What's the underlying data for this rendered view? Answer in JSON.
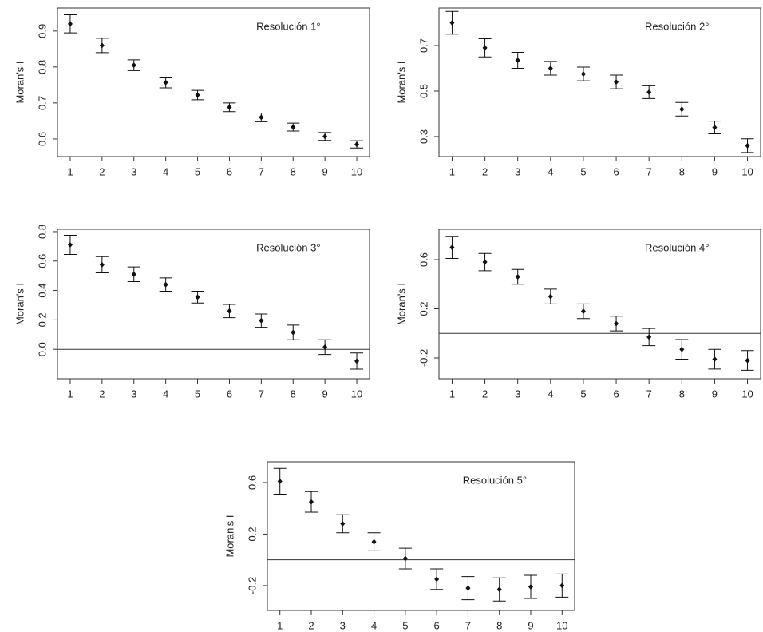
{
  "chart_data": [
    {
      "type": "errorbar",
      "annotation": "Resolución 1°",
      "y_label": "Moran's I",
      "x": [
        1,
        2,
        3,
        4,
        5,
        6,
        7,
        8,
        9,
        10
      ],
      "values": [
        0.92,
        0.86,
        0.805,
        0.757,
        0.722,
        0.688,
        0.66,
        0.633,
        0.607,
        0.585
      ],
      "errors": [
        0.025,
        0.02,
        0.015,
        0.015,
        0.013,
        0.012,
        0.012,
        0.011,
        0.011,
        0.01
      ],
      "xlim": [
        0.6,
        10.4
      ],
      "xticks": [
        1,
        2,
        3,
        4,
        5,
        6,
        7,
        8,
        9,
        10
      ],
      "ylim": [
        0.551,
        0.964
      ],
      "yticks": [
        0.6,
        0.7,
        0.8,
        0.9
      ]
    },
    {
      "type": "errorbar",
      "annotation": "Resolución 2°",
      "y_label": "Moran's I",
      "x": [
        1,
        2,
        3,
        4,
        5,
        6,
        7,
        8,
        9,
        10
      ],
      "values": [
        0.8,
        0.69,
        0.635,
        0.6,
        0.575,
        0.54,
        0.495,
        0.42,
        0.34,
        0.26
      ],
      "errors": [
        0.05,
        0.04,
        0.035,
        0.03,
        0.03,
        0.03,
        0.028,
        0.03,
        0.028,
        0.03
      ],
      "xlim": [
        0.6,
        10.4
      ],
      "xticks": [
        1,
        2,
        3,
        4,
        5,
        6,
        7,
        8,
        9,
        10
      ],
      "ylim": [
        0.212,
        0.865
      ],
      "yticks": [
        0.3,
        0.5,
        0.7
      ]
    },
    {
      "type": "errorbar",
      "annotation": "Resolución 3°",
      "y_label": "Moran's I",
      "x": [
        1,
        2,
        3,
        4,
        5,
        6,
        7,
        8,
        9,
        10
      ],
      "values": [
        0.71,
        0.575,
        0.51,
        0.44,
        0.355,
        0.26,
        0.195,
        0.115,
        0.015,
        -0.08
      ],
      "errors": [
        0.065,
        0.055,
        0.05,
        0.045,
        0.04,
        0.045,
        0.045,
        0.05,
        0.05,
        0.055
      ],
      "xlim": [
        0.6,
        10.4
      ],
      "xticks": [
        1,
        2,
        3,
        4,
        5,
        6,
        7,
        8,
        9,
        10
      ],
      "ylim": [
        -0.2,
        0.816
      ],
      "yticks": [
        {
          "value": 0,
          "label": "0.0"
        },
        0.2,
        0.4,
        0.6,
        0.8
      ],
      "hline": 0
    },
    {
      "type": "errorbar",
      "annotation": "Resolución 4°",
      "y_label": "Moran's I",
      "x": [
        1,
        2,
        3,
        4,
        5,
        6,
        7,
        8,
        9,
        10
      ],
      "values": [
        0.7,
        0.58,
        0.46,
        0.3,
        0.18,
        0.08,
        -0.03,
        -0.13,
        -0.21,
        -0.22
      ],
      "errors": [
        0.09,
        0.07,
        0.06,
        0.06,
        0.06,
        0.06,
        0.07,
        0.08,
        0.08,
        0.08
      ],
      "xlim": [
        0.6,
        10.4
      ],
      "xticks": [
        1,
        2,
        3,
        4,
        5,
        6,
        7,
        8,
        9,
        10
      ],
      "ylim": [
        -0.369,
        0.847
      ],
      "yticks": [
        -0.2,
        0.2,
        0.6
      ],
      "hline": 0
    },
    {
      "type": "errorbar",
      "annotation": "Resolución 5°",
      "y_label": "Moran's I",
      "x": [
        1,
        2,
        3,
        4,
        5,
        6,
        7,
        8,
        9,
        10
      ],
      "values": [
        0.61,
        0.45,
        0.28,
        0.14,
        0.01,
        -0.15,
        -0.22,
        -0.23,
        -0.21,
        -0.2
      ],
      "errors": [
        0.1,
        0.08,
        0.07,
        0.07,
        0.08,
        0.08,
        0.09,
        0.09,
        0.09,
        0.09
      ],
      "xlim": [
        0.6,
        10.4
      ],
      "xticks": [
        1,
        2,
        3,
        4,
        5,
        6,
        7,
        8,
        9,
        10
      ],
      "ylim": [
        -0.393,
        0.761
      ],
      "yticks": [
        -0.2,
        0.2,
        0.6
      ],
      "hline": 0
    }
  ]
}
